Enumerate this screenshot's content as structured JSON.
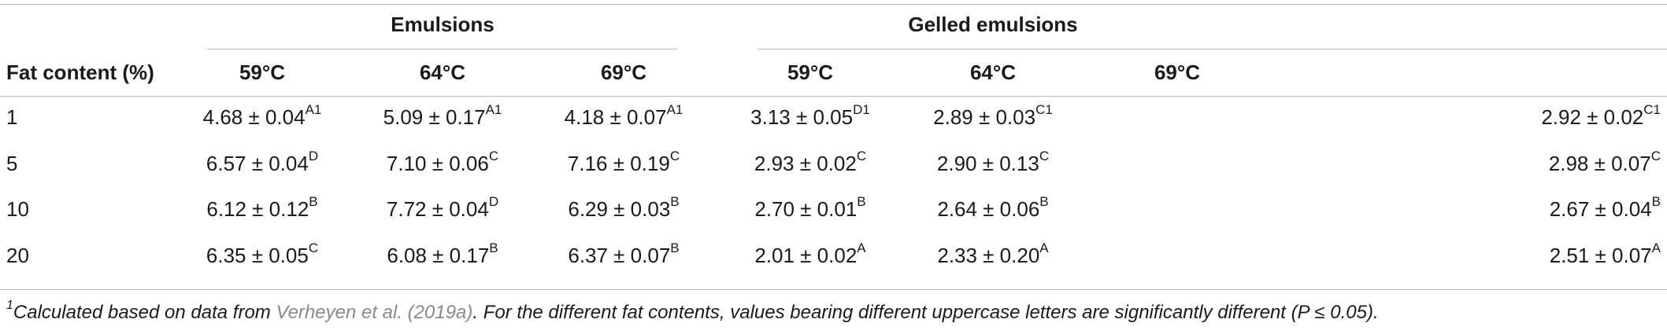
{
  "table": {
    "group_headers": [
      "Emulsions",
      "Gelled emulsions"
    ],
    "row_header": "Fat content (%)",
    "col_headers": [
      "59°C",
      "64°C",
      "69°C",
      "59°C",
      "64°C",
      "69°C"
    ],
    "rows": [
      {
        "label": "1",
        "cells": [
          {
            "v": "4.68 ± 0.04",
            "s": "A1"
          },
          {
            "v": "5.09 ± 0.17",
            "s": "A1"
          },
          {
            "v": "4.18 ± 0.07",
            "s": "A1"
          },
          {
            "v": "3.13 ± 0.05",
            "s": "D1"
          },
          {
            "v": "2.89 ± 0.03",
            "s": "C1"
          },
          {
            "v": "2.92 ± 0.02",
            "s": "C1"
          }
        ]
      },
      {
        "label": "5",
        "cells": [
          {
            "v": "6.57 ± 0.04",
            "s": "D"
          },
          {
            "v": "7.10 ± 0.06",
            "s": "C"
          },
          {
            "v": "7.16 ± 0.19",
            "s": "C"
          },
          {
            "v": "2.93 ± 0.02",
            "s": "C"
          },
          {
            "v": "2.90 ± 0.13",
            "s": "C"
          },
          {
            "v": "2.98 ± 0.07",
            "s": "C"
          }
        ]
      },
      {
        "label": "10",
        "cells": [
          {
            "v": "6.12 ± 0.12",
            "s": "B"
          },
          {
            "v": "7.72 ± 0.04",
            "s": "D"
          },
          {
            "v": "6.29 ± 0.03",
            "s": "B"
          },
          {
            "v": "2.70 ± 0.01",
            "s": "B"
          },
          {
            "v": "2.64 ± 0.06",
            "s": "B"
          },
          {
            "v": "2.67 ± 0.04",
            "s": "B"
          }
        ]
      },
      {
        "label": "20",
        "cells": [
          {
            "v": "6.35 ± 0.05",
            "s": "C"
          },
          {
            "v": "6.08 ± 0.17",
            "s": "B"
          },
          {
            "v": "6.37 ± 0.07",
            "s": "B"
          },
          {
            "v": "2.01 ± 0.02",
            "s": "A"
          },
          {
            "v": "2.33 ± 0.20",
            "s": "A"
          },
          {
            "v": "2.51 ± 0.07",
            "s": "A"
          }
        ]
      }
    ]
  },
  "footnote": {
    "mark": "1",
    "text_before": "Calculated based on data from ",
    "reference": "Verheyen et al. (2019a)",
    "text_after": ". For the different fat contents, values bearing different uppercase letters are significantly different (P ≤ 0.05)."
  },
  "colors": {
    "rule": "#b5b5b5",
    "reference_link": "#8a8a8a",
    "text": "#1a1a1a"
  }
}
